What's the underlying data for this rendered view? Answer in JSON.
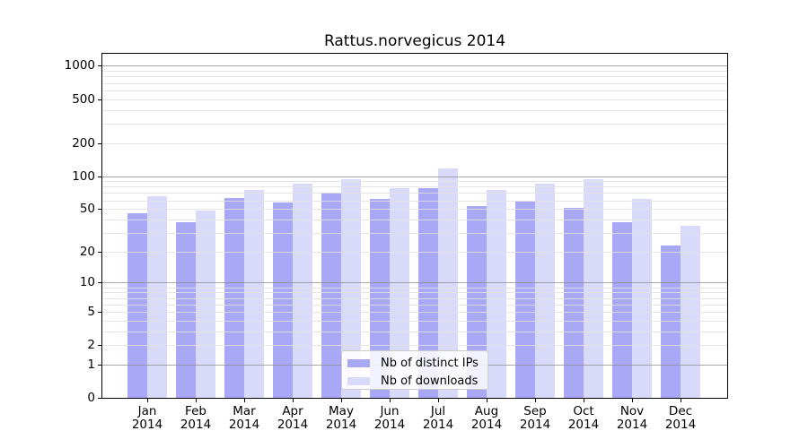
{
  "figure": {
    "title": "Rattus.norvegicus 2014"
  },
  "chart_data": {
    "type": "bar",
    "title": "Rattus.norvegicus 2014",
    "categories": [
      "Jan 2014",
      "Feb 2014",
      "Mar 2014",
      "Apr 2014",
      "May 2014",
      "Jun 2014",
      "Jul 2014",
      "Aug 2014",
      "Sep 2014",
      "Oct 2014",
      "Nov 2014",
      "Dec 2014"
    ],
    "month_abbrs": [
      "Jan",
      "Feb",
      "Mar",
      "Apr",
      "May",
      "Jun",
      "Jul",
      "Aug",
      "Sep",
      "Oct",
      "Nov",
      "Dec"
    ],
    "year_line": "2014",
    "series": [
      {
        "name": "Nb of distinct IPs",
        "color": "#a8a8f6",
        "values": [
          46,
          38,
          63,
          57,
          71,
          62,
          77,
          53,
          58,
          51,
          38,
          23
        ]
      },
      {
        "name": "Nb of downloads",
        "color": "#d9d9fa",
        "values": [
          65,
          48,
          74,
          85,
          93,
          77,
          118,
          75,
          86,
          93,
          62,
          35
        ]
      }
    ],
    "yscale": "log1p",
    "ylim": [
      0,
      1285
    ],
    "yticks": [
      0,
      1,
      2,
      5,
      10,
      20,
      50,
      100,
      200,
      500,
      1000
    ],
    "ytick_labels": [
      "0",
      "1",
      "2",
      "5",
      "10",
      "20",
      "50",
      "100",
      "200",
      "500",
      "1000"
    ],
    "major_gridlines": [
      1,
      10,
      100,
      1000
    ],
    "minor_gridlines": [
      2,
      3,
      4,
      5,
      6,
      7,
      8,
      9,
      20,
      30,
      40,
      50,
      60,
      70,
      80,
      90,
      200,
      300,
      400,
      500,
      600,
      700,
      800,
      900
    ],
    "grid": "both",
    "legend_position": "inside lower center",
    "legend": {
      "items": [
        {
          "label": "Nb of distinct IPs",
          "color": "#a8a8f6"
        },
        {
          "label": "Nb of downloads",
          "color": "#d9d9fa"
        }
      ]
    }
  },
  "colors": {
    "bar_distinct_ips": "#a8a8f6",
    "bar_downloads": "#d9d9fa",
    "grid_major": "#8c8c8c",
    "grid_minor": "#e1e1e1",
    "spine": "#000000",
    "text": "#000000",
    "legend_border": "#cccccc",
    "background": "#ffffff"
  }
}
